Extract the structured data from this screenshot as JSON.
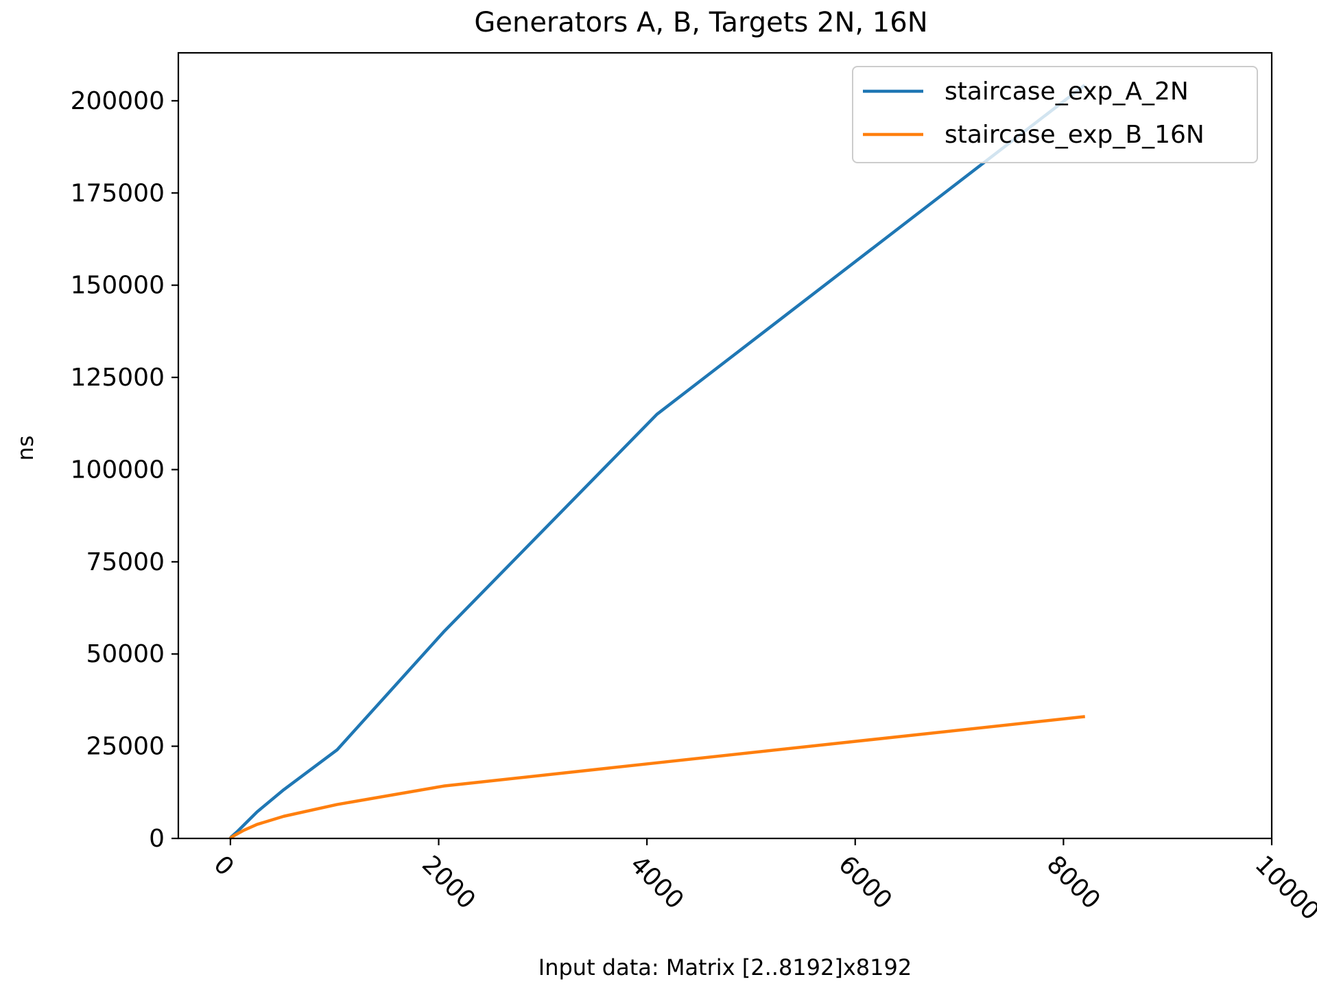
{
  "chart_data": {
    "type": "line",
    "title": "Generators A, B, Targets 2N, 16N",
    "xlabel": "Input data: Matrix [2..8192]x8192",
    "ylabel": "ns",
    "xlim": [
      -500,
      10000
    ],
    "ylim": [
      0,
      213000
    ],
    "xticks": [
      0,
      2000,
      4000,
      6000,
      8000,
      10000
    ],
    "yticks": [
      0,
      25000,
      50000,
      75000,
      100000,
      125000,
      150000,
      175000,
      200000
    ],
    "xtick_labels": [
      "0",
      "2000",
      "4000",
      "6000",
      "8000",
      "10000"
    ],
    "ytick_labels": [
      "0",
      "25000",
      "50000",
      "75000",
      "100000",
      "125000",
      "150000",
      "175000",
      "200000"
    ],
    "grid": false,
    "legend_position": "top-right",
    "x": [
      2,
      4,
      8,
      16,
      32,
      64,
      128,
      256,
      512,
      1024,
      2048,
      4096,
      8192
    ],
    "series": [
      {
        "name": "staircase_exp_A_2N",
        "color": "#1f77b4",
        "values": [
          150,
          250,
          400,
          600,
          1000,
          1800,
          3600,
          7200,
          13200,
          24000,
          56000,
          115000,
          204000
        ]
      },
      {
        "name": "staircase_exp_B_16N",
        "color": "#ff7f0e",
        "values": [
          80,
          150,
          250,
          400,
          700,
          1200,
          2200,
          3800,
          6000,
          9200,
          14200,
          20500,
          33000
        ]
      }
    ]
  }
}
